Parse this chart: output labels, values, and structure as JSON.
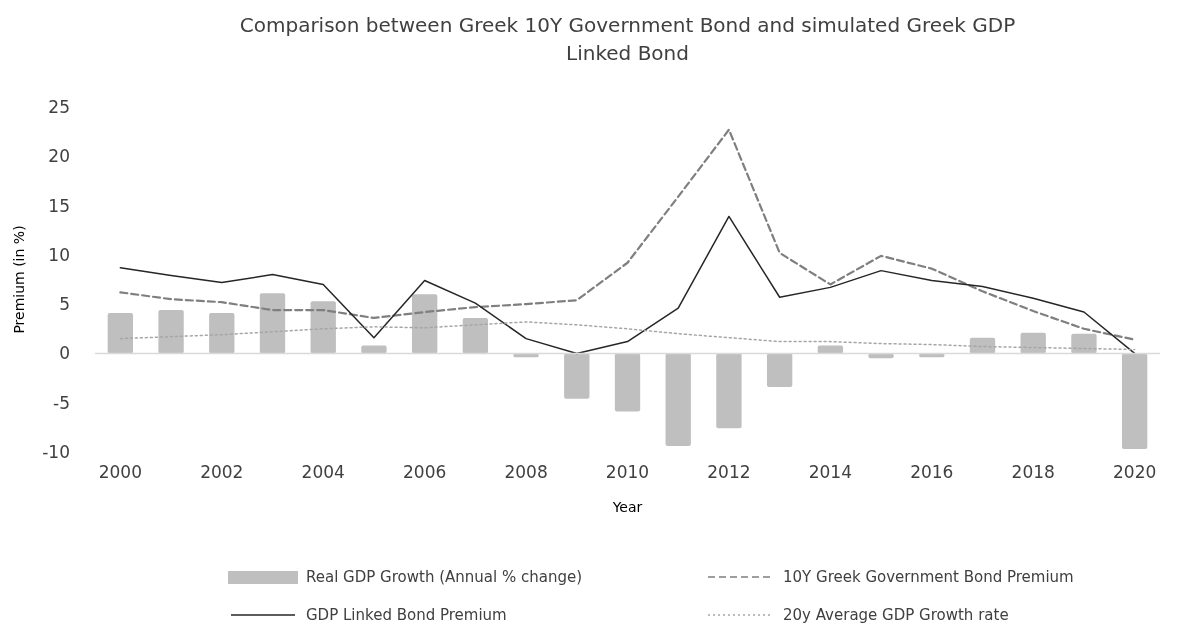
{
  "chart_data": {
    "type": "bar",
    "title": "Comparison between Greek 10Y Government Bond and simulated Greek GDP Linked Bond",
    "xlabel": "Year",
    "ylabel": "Premium (in %)",
    "categories": [
      "2000",
      null,
      "2002",
      null,
      "2004",
      null,
      "2006",
      null,
      "2008",
      null,
      "2010",
      null,
      "2012",
      null,
      "2014",
      null,
      "2016",
      null,
      "2018",
      null,
      "2020"
    ],
    "series": [
      {
        "name": "Real GDP Growth (Annual % change)",
        "color": "#bfbfbf",
        "values": [
          4.1,
          4.4,
          4.1,
          6.1,
          5.3,
          0.8,
          6.0,
          3.6,
          -0.4,
          -4.6,
          -5.9,
          -9.4,
          -7.6,
          -3.4,
          0.8,
          -0.5,
          -0.4,
          1.6,
          2.1,
          2.0,
          -9.7
        ]
      },
      {
        "name": "10Y Greek Government Bond Premium",
        "type": "line",
        "line_style": "dashed",
        "color": "#7f7f7f",
        "values": [
          6.2,
          5.5,
          5.2,
          4.4,
          4.4,
          3.6,
          4.2,
          4.7,
          5.0,
          5.4,
          9.2,
          15.9,
          22.7,
          10.2,
          7.0,
          9.9,
          8.6,
          6.3,
          4.3,
          2.5,
          1.4
        ]
      },
      {
        "name": "GDP Linked Bond Premium",
        "type": "line",
        "line_style": "solid",
        "color": "#262626",
        "values": [
          8.7,
          7.9,
          7.2,
          8.0,
          7.0,
          1.6,
          7.4,
          5.1,
          1.5,
          0.0,
          1.2,
          4.6,
          13.9,
          5.7,
          6.7,
          8.4,
          7.4,
          6.8,
          5.6,
          4.2,
          0.0
        ]
      },
      {
        "name": "20y Average GDP Growth rate",
        "type": "line",
        "line_style": "dotted",
        "color": "#a6a6a6",
        "values": [
          1.5,
          1.7,
          1.9,
          2.2,
          2.5,
          2.7,
          2.6,
          2.9,
          3.2,
          2.9,
          2.5,
          2.0,
          1.6,
          1.2,
          1.2,
          1.0,
          0.9,
          0.7,
          0.6,
          0.5,
          0.4
        ]
      }
    ],
    "ylim": [
      -10,
      25
    ],
    "yticks": [
      -10,
      -5,
      0,
      5,
      10,
      15,
      20,
      25
    ],
    "legend": "bottom"
  }
}
